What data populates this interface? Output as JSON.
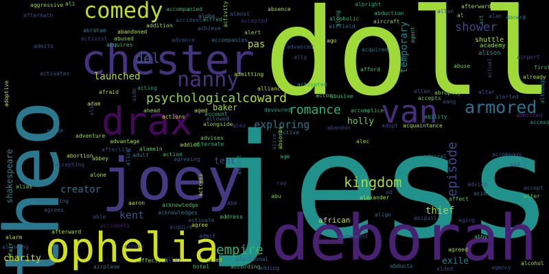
{
  "words": [
    {
      "text": "jess",
      "color": "#21918c"
    },
    {
      "text": "doll",
      "color": "#a0da39"
    },
    {
      "text": "theo",
      "color": "#2a788e"
    },
    {
      "text": "deborah",
      "color": "#482173"
    },
    {
      "text": "joey",
      "color": "#443983"
    },
    {
      "text": "chester",
      "color": "#46337f"
    },
    {
      "text": "ophelia",
      "color": "#d0e11c"
    },
    {
      "text": "drax",
      "color": "#46085c"
    },
    {
      "text": "van",
      "color": "#472d7b"
    },
    {
      "text": "comedy",
      "color": "#c2df23"
    },
    {
      "text": "nanny",
      "color": "#46337f"
    },
    {
      "text": "armored",
      "color": "#2c728e"
    },
    {
      "text": "psychological",
      "color": "#8fd744"
    },
    {
      "text": "coward",
      "color": "#b5de2b"
    },
    {
      "text": "romance",
      "color": "#2ab07f"
    },
    {
      "text": "episode",
      "color": "#414487"
    },
    {
      "text": "empire",
      "color": "#31b57b"
    },
    {
      "text": "kingdom",
      "color": "#addc30"
    },
    {
      "text": "del",
      "color": "#3b528b"
    },
    {
      "text": "shower",
      "color": "#3e4989"
    },
    {
      "text": "exploring",
      "color": "#2a788e"
    },
    {
      "text": "launched",
      "color": "#b5de2b"
    },
    {
      "text": "temporary",
      "color": "#25858e"
    },
    {
      "text": "kent",
      "color": "#3b528b"
    },
    {
      "text": "creator",
      "color": "#2d708e"
    },
    {
      "text": "thief",
      "color": "#a0da39"
    },
    {
      "text": "charity",
      "color": "#c8e020"
    },
    {
      "text": "holly",
      "color": "#6ece58"
    },
    {
      "text": "tent",
      "color": "#3e4989"
    },
    {
      "text": "pas",
      "color": "#bddf26"
    },
    {
      "text": "exile",
      "color": "#26828e"
    },
    {
      "text": "african",
      "color": "#cae11f"
    },
    {
      "text": "baker",
      "color": "#a5db36"
    },
    {
      "text": "shakespeare",
      "color": "#25858e"
    },
    {
      "text": "shuttle",
      "color": "#b5de2b"
    },
    {
      "text": "academy",
      "color": "#8fd744"
    },
    {
      "text": "alison",
      "color": "#1f9e89"
    },
    {
      "text": "afterwards",
      "color": "#addc30"
    },
    {
      "text": "aggressive",
      "color": "#93d741"
    },
    {
      "text": "aftermath",
      "color": "#3e4989"
    },
    {
      "text": "ali",
      "color": "#8fd744"
    },
    {
      "text": "absence",
      "color": "#addc30"
    },
    {
      "text": "abduction",
      "color": "#29af7f"
    },
    {
      "text": "allan",
      "color": "#3b528b"
    },
    {
      "text": "aboard",
      "color": "#277f8e"
    },
    {
      "text": "alan",
      "color": "#3b528b"
    },
    {
      "text": "al",
      "color": "#addc30"
    },
    {
      "text": "act",
      "color": "#1f9e89"
    },
    {
      "text": "albright",
      "color": "#25ac82"
    },
    {
      "text": "along",
      "color": "#21a685"
    },
    {
      "text": "alcoholic",
      "color": "#35b779"
    },
    {
      "text": "airfield",
      "color": "#2c728e"
    },
    {
      "text": "aircraft",
      "color": "#9bd93c"
    },
    {
      "text": "agent",
      "color": "#29af7f"
    },
    {
      "text": "alpha",
      "color": "#2a788e"
    },
    {
      "text": "alfred",
      "color": "#1fa287"
    },
    {
      "text": "almost",
      "color": "#38598c"
    },
    {
      "text": "alert",
      "color": "#94d840"
    },
    {
      "text": "accompanied",
      "color": "#31b57b"
    },
    {
      "text": "accident",
      "color": "#3b528b"
    },
    {
      "text": "accepted",
      "color": "#472d7b"
    },
    {
      "text": "activity",
      "color": "#8fd744"
    },
    {
      "text": "abraham",
      "color": "#2a788e"
    },
    {
      "text": "activist",
      "color": "#404688"
    },
    {
      "text": "abused",
      "color": "#8fd744"
    },
    {
      "text": "abandoned",
      "color": "#b5de2b"
    },
    {
      "text": "acquires",
      "color": "#38b977"
    },
    {
      "text": "addition",
      "color": "#a5db36"
    },
    {
      "text": "advance",
      "color": "#3e4989"
    },
    {
      "text": "accompanies",
      "color": "#2c728e"
    },
    {
      "text": "achieve",
      "color": "#34618d"
    },
    {
      "text": "admits",
      "color": "#3b528b"
    },
    {
      "text": "ago",
      "color": "#c2df23"
    },
    {
      "text": "acquired",
      "color": "#2c728e"
    },
    {
      "text": "ally",
      "color": "#3b528b"
    },
    {
      "text": "advanced",
      "color": "#3b528b"
    },
    {
      "text": "activated",
      "color": "#1f9e89"
    },
    {
      "text": "activates",
      "color": "#38598c"
    },
    {
      "text": "afford",
      "color": "#44bf70"
    },
    {
      "text": "abuse",
      "color": "#6ece58"
    },
    {
      "text": "actual",
      "color": "#3e4989"
    },
    {
      "text": "first",
      "color": "#35b779"
    },
    {
      "text": "already",
      "color": "#a8db34"
    },
    {
      "text": "airport",
      "color": "#3e4989"
    },
    {
      "text": "admitting",
      "color": "#addc30"
    },
    {
      "text": "alliance",
      "color": "#c2df23"
    },
    {
      "text": "actor",
      "color": "#5cc863"
    },
    {
      "text": "abusive",
      "color": "#35b779"
    },
    {
      "text": "allen",
      "color": "#3b528b"
    },
    {
      "text": "abruptly",
      "color": "#7ad151"
    },
    {
      "text": "altar",
      "color": "#3b528b"
    },
    {
      "text": "alerted",
      "color": "#3b528b"
    },
    {
      "text": "although",
      "color": "#2a788e"
    },
    {
      "text": "afraid",
      "color": "#addc30"
    },
    {
      "text": "acting",
      "color": "#1f9e89"
    },
    {
      "text": "adam",
      "color": "#bddf26"
    },
    {
      "text": "aide",
      "color": "#3b528b"
    },
    {
      "text": "adoptive",
      "color": "#c2df23"
    },
    {
      "text": "ahead",
      "color": "#95d840"
    },
    {
      "text": "aged",
      "color": "#c2df23"
    },
    {
      "text": "devoured",
      "color": "#1f9e89"
    },
    {
      "text": "accomplice",
      "color": "#38b977"
    },
    {
      "text": "accepts",
      "color": "#6ece58"
    },
    {
      "text": "aang",
      "color": "#3b528b"
    },
    {
      "text": "admitted",
      "color": "#472d7b"
    },
    {
      "text": "actions",
      "color": "#b5de2b"
    },
    {
      "text": "account",
      "color": "#31b57b"
    },
    {
      "text": "allowed",
      "color": "#31688e"
    },
    {
      "text": "alongside",
      "color": "#93d741"
    },
    {
      "text": "alex",
      "color": "#3e4989"
    },
    {
      "text": "adopt",
      "color": "#3e4989"
    },
    {
      "text": "acquaintance",
      "color": "#a8db34"
    },
    {
      "text": "ability",
      "color": "#25ac82"
    },
    {
      "text": "alive",
      "color": "#3e4989"
    },
    {
      "text": "access",
      "color": "#1f9e89"
    },
    {
      "text": "seize",
      "color": "#31688e"
    },
    {
      "text": "adventure",
      "color": "#a0da39"
    },
    {
      "text": "advises",
      "color": "#6ece58"
    },
    {
      "text": "abandon",
      "color": "#3e4989"
    },
    {
      "text": "active",
      "color": "#2c728e"
    },
    {
      "text": "advantage",
      "color": "#a5db36"
    },
    {
      "text": "afterlife",
      "color": "#3e4989"
    },
    {
      "text": "alamein",
      "color": "#5cc863"
    },
    {
      "text": "addict",
      "color": "#a5db36"
    },
    {
      "text": "alternate",
      "color": "#29af7f"
    },
    {
      "text": "alec",
      "color": "#a0da39"
    },
    {
      "text": "absorbs",
      "color": "#a0da39"
    },
    {
      "text": "also",
      "color": "#404688"
    },
    {
      "text": "abbey",
      "color": "#a0da39"
    },
    {
      "text": "adult",
      "color": "#2a788e"
    },
    {
      "text": "action",
      "color": "#44bf70"
    },
    {
      "text": "agreeing",
      "color": "#38598c"
    },
    {
      "text": "age",
      "color": "#29af7f"
    },
    {
      "text": "admiral",
      "color": "#2a788e"
    },
    {
      "text": "accompany",
      "color": "#38598c"
    },
    {
      "text": "abortion",
      "color": "#c2df23"
    },
    {
      "text": "accepting",
      "color": "#3e4989"
    },
    {
      "text": "albert",
      "color": "#2a788e"
    },
    {
      "text": "ray",
      "color": "#3e4989"
    },
    {
      "text": "aid",
      "color": "#26828e"
    },
    {
      "text": "add",
      "color": "#3e4989"
    },
    {
      "text": "alice",
      "color": "#2c728e"
    },
    {
      "text": "alone",
      "color": "#a0da39"
    },
    {
      "text": "actress",
      "color": "#bddf26"
    },
    {
      "text": "advice",
      "color": "#3e4989"
    },
    {
      "text": "accept",
      "color": "#3b528b"
    },
    {
      "text": "alter",
      "color": "#5cc863"
    },
    {
      "text": "alias",
      "color": "#6ece58"
    },
    {
      "text": "acid",
      "color": "#2c728e"
    },
    {
      "text": "abandoning",
      "color": "#31688e"
    },
    {
      "text": "abu",
      "color": "#7ad151"
    },
    {
      "text": "ad",
      "color": "#3b528b"
    },
    {
      "text": "alexander",
      "color": "#a0da39"
    },
    {
      "text": "affect",
      "color": "#5cc863"
    },
    {
      "text": "agrees",
      "color": "#3b528b"
    },
    {
      "text": "aaron",
      "color": "#b5de2b"
    },
    {
      "text": "acknowledge",
      "color": "#44bf70"
    },
    {
      "text": "abe",
      "color": "#3b528b"
    },
    {
      "text": "align",
      "color": "#31688e"
    },
    {
      "text": "abigail",
      "color": "#3e4989"
    },
    {
      "text": "aging",
      "color": "#404688"
    },
    {
      "text": "able",
      "color": "#404688"
    },
    {
      "text": "acknowledges",
      "color": "#2c728e"
    },
    {
      "text": "address",
      "color": "#44bf70"
    },
    {
      "text": "activate",
      "color": "#38598c"
    },
    {
      "text": "acquire",
      "color": "#3e4989"
    },
    {
      "text": "agree",
      "color": "#c2df23"
    },
    {
      "text": "accidents",
      "color": "#482173"
    },
    {
      "text": "afterward",
      "color": "#a8db34"
    },
    {
      "text": "admit",
      "color": "#3b528b"
    },
    {
      "text": "alarm",
      "color": "#c2df23"
    },
    {
      "text": "abby",
      "color": "#35b779"
    },
    {
      "text": "agreement",
      "color": "#3e4989"
    },
    {
      "text": "allowing",
      "color": "#3e4989"
    },
    {
      "text": "affection",
      "color": "#a0da39"
    },
    {
      "text": "alley",
      "color": "#3b528b"
    },
    {
      "text": "additional",
      "color": "#31688e"
    },
    {
      "text": "across",
      "color": "#3e4989"
    },
    {
      "text": "accused",
      "color": "#addc30"
    },
    {
      "text": "agreed",
      "color": "#93d741"
    },
    {
      "text": "affair",
      "color": "#44bf70"
    },
    {
      "text": "hotel",
      "color": "#44bf70"
    },
    {
      "text": "according",
      "color": "#44bf70"
    },
    {
      "text": "abducts",
      "color": "#2a788e"
    },
    {
      "text": "aided",
      "color": "#404688"
    },
    {
      "text": "agency",
      "color": "#3e4989"
    },
    {
      "text": "airplane",
      "color": "#2a788e"
    },
    {
      "text": "adding",
      "color": "#3b528b"
    },
    {
      "text": "alcohol",
      "color": "#a5db36"
    }
  ]
}
